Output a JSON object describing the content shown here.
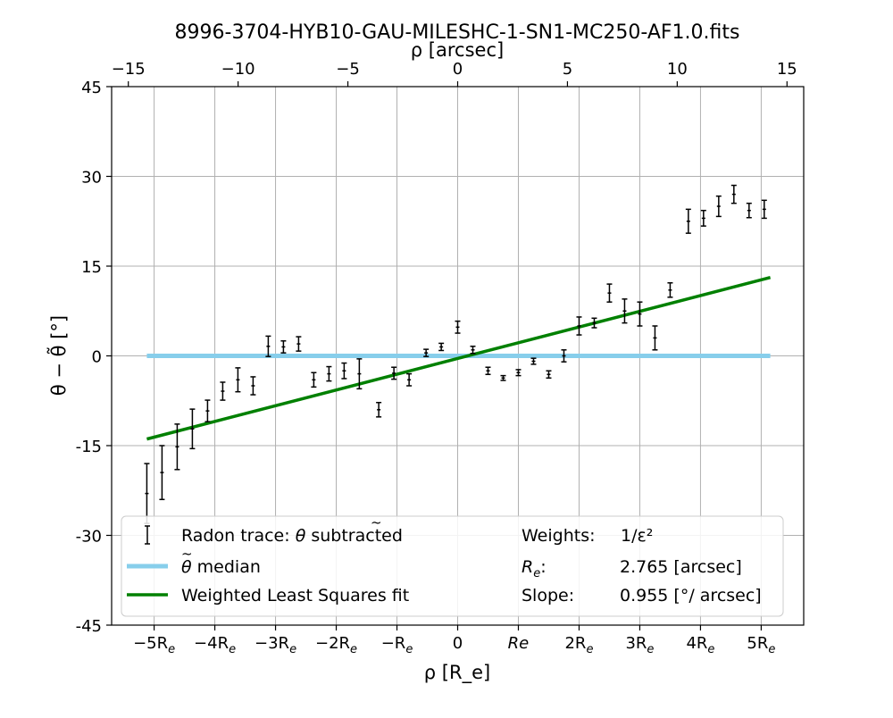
{
  "chart_data": {
    "type": "scatter",
    "title": "8996-3704-HYB10-GAU-MILESHC-1-SN1-MC250-AF1.0.fits",
    "xlabel": "ρ [R_e]",
    "ylabel": "θ − θ̃ [°]",
    "top_xlabel": "ρ [arcsec]",
    "xlim_re": [
      -5.7,
      5.7
    ],
    "ylim": [
      -45,
      45
    ],
    "grid": true,
    "bottom_ticks": [
      {
        "value": -5,
        "text": "−5R",
        "sub": "e"
      },
      {
        "value": -4,
        "text": "−4R",
        "sub": "e"
      },
      {
        "value": -3,
        "text": "−3R",
        "sub": "e"
      },
      {
        "value": -2,
        "text": "−2R",
        "sub": "e"
      },
      {
        "value": -1,
        "text": "−R",
        "sub": "e"
      },
      {
        "value": 0,
        "text": "0",
        "sub": ""
      },
      {
        "value": 1,
        "text": "Re",
        "sub": ""
      },
      {
        "value": 2,
        "text": "2R",
        "sub": "e"
      },
      {
        "value": 3,
        "text": "3R",
        "sub": "e"
      },
      {
        "value": 4,
        "text": "4R",
        "sub": "e"
      },
      {
        "value": 5,
        "text": "5R",
        "sub": "e"
      }
    ],
    "top_ticks": [
      {
        "value": -15,
        "text": "−15"
      },
      {
        "value": -10,
        "text": "−10"
      },
      {
        "value": -5,
        "text": "−5"
      },
      {
        "value": 0,
        "text": "0"
      },
      {
        "value": 5,
        "text": "5"
      },
      {
        "value": 10,
        "text": "10"
      },
      {
        "value": 15,
        "text": "15"
      }
    ],
    "y_ticks": [
      {
        "value": 45,
        "text": "45"
      },
      {
        "value": 30,
        "text": "30"
      },
      {
        "value": 15,
        "text": "15"
      },
      {
        "value": 0,
        "text": "0"
      },
      {
        "value": -15,
        "text": "-15"
      },
      {
        "value": -30,
        "text": "-30"
      },
      {
        "value": -45,
        "text": "-45"
      }
    ],
    "series": [
      {
        "name": "Radon trace: θ̃ subtracted",
        "color": "#000000",
        "points": [
          {
            "x": -5.12,
            "y": -23.0,
            "err": 5.0
          },
          {
            "x": -4.87,
            "y": -19.5,
            "err": 4.5
          },
          {
            "x": -4.62,
            "y": -15.2,
            "err": 3.8
          },
          {
            "x": -4.37,
            "y": -12.2,
            "err": 3.3
          },
          {
            "x": -4.12,
            "y": -9.2,
            "err": 1.8
          },
          {
            "x": -3.87,
            "y": -5.9,
            "err": 1.5
          },
          {
            "x": -3.62,
            "y": -4.0,
            "err": 2.0
          },
          {
            "x": -3.37,
            "y": -5.0,
            "err": 1.5
          },
          {
            "x": -3.12,
            "y": 1.6,
            "err": 1.7
          },
          {
            "x": -2.87,
            "y": 1.5,
            "err": 1.0
          },
          {
            "x": -2.62,
            "y": 2.0,
            "err": 1.2
          },
          {
            "x": -2.37,
            "y": -4.0,
            "err": 1.2
          },
          {
            "x": -2.12,
            "y": -3.0,
            "err": 1.2
          },
          {
            "x": -1.87,
            "y": -2.5,
            "err": 1.3
          },
          {
            "x": -1.62,
            "y": -3.0,
            "err": 2.5
          },
          {
            "x": -1.3,
            "y": -9.0,
            "err": 1.2
          },
          {
            "x": -1.05,
            "y": -2.9,
            "err": 1.0
          },
          {
            "x": -0.8,
            "y": -4.0,
            "err": 1.0
          },
          {
            "x": -0.52,
            "y": 0.5,
            "err": 0.6
          },
          {
            "x": -0.27,
            "y": 1.5,
            "err": 0.6
          },
          {
            "x": 0.0,
            "y": 4.8,
            "err": 1.0
          },
          {
            "x": 0.25,
            "y": 1.0,
            "err": 0.6
          },
          {
            "x": 0.5,
            "y": -2.5,
            "err": 0.6
          },
          {
            "x": 0.75,
            "y": -3.7,
            "err": 0.4
          },
          {
            "x": 1.0,
            "y": -2.8,
            "err": 0.5
          },
          {
            "x": 1.25,
            "y": -0.9,
            "err": 0.5
          },
          {
            "x": 1.5,
            "y": -3.1,
            "err": 0.6
          },
          {
            "x": 1.75,
            "y": 0.0,
            "err": 1.0
          },
          {
            "x": 2.0,
            "y": 5.0,
            "err": 1.5
          },
          {
            "x": 2.25,
            "y": 5.5,
            "err": 0.8
          },
          {
            "x": 2.5,
            "y": 10.5,
            "err": 1.5
          },
          {
            "x": 2.75,
            "y": 7.5,
            "err": 2.0
          },
          {
            "x": 3.0,
            "y": 7.0,
            "err": 2.0
          },
          {
            "x": 3.25,
            "y": 3.0,
            "err": 2.0
          },
          {
            "x": 3.5,
            "y": 11.0,
            "err": 1.2
          },
          {
            "x": 3.8,
            "y": 22.5,
            "err": 2.0
          },
          {
            "x": 4.05,
            "y": 23.0,
            "err": 1.3
          },
          {
            "x": 4.3,
            "y": 25.0,
            "err": 1.7
          },
          {
            "x": 4.55,
            "y": 27.0,
            "err": 1.5
          },
          {
            "x": 4.8,
            "y": 24.3,
            "err": 1.2
          },
          {
            "x": 5.05,
            "y": 24.5,
            "err": 1.5
          }
        ]
      },
      {
        "name": "θ̃ median",
        "color": "#87ceeb",
        "line": [
          [
            -5.12,
            0
          ],
          [
            5.15,
            0
          ]
        ]
      },
      {
        "name": "Weighted Least Squares fit",
        "color": "#008000",
        "line": [
          [
            -5.12,
            -13.9
          ],
          [
            5.15,
            13.1
          ]
        ]
      }
    ],
    "legend": {
      "placement": "lower-center",
      "entries": [
        {
          "label": "Radon trace: ",
          "label_suffix": " subtracted",
          "theta_tilde": true,
          "kind": "errorbar",
          "color": "#000000"
        },
        {
          "label": "",
          "label_suffix": " median",
          "theta_tilde": true,
          "kind": "line",
          "color": "#87ceeb"
        },
        {
          "label": "Weighted Least Squares fit",
          "label_suffix": "",
          "theta_tilde": false,
          "kind": "line",
          "color": "#008000"
        }
      ],
      "info": [
        {
          "key": "Weights:",
          "value": "1/ε²"
        },
        {
          "key": "R",
          "key_sub": "e",
          "key_suffix": ":",
          "value": "2.765 [arcsec]"
        },
        {
          "key": "Slope:",
          "value": "0.955 [°/ arcsec]"
        }
      ]
    }
  }
}
